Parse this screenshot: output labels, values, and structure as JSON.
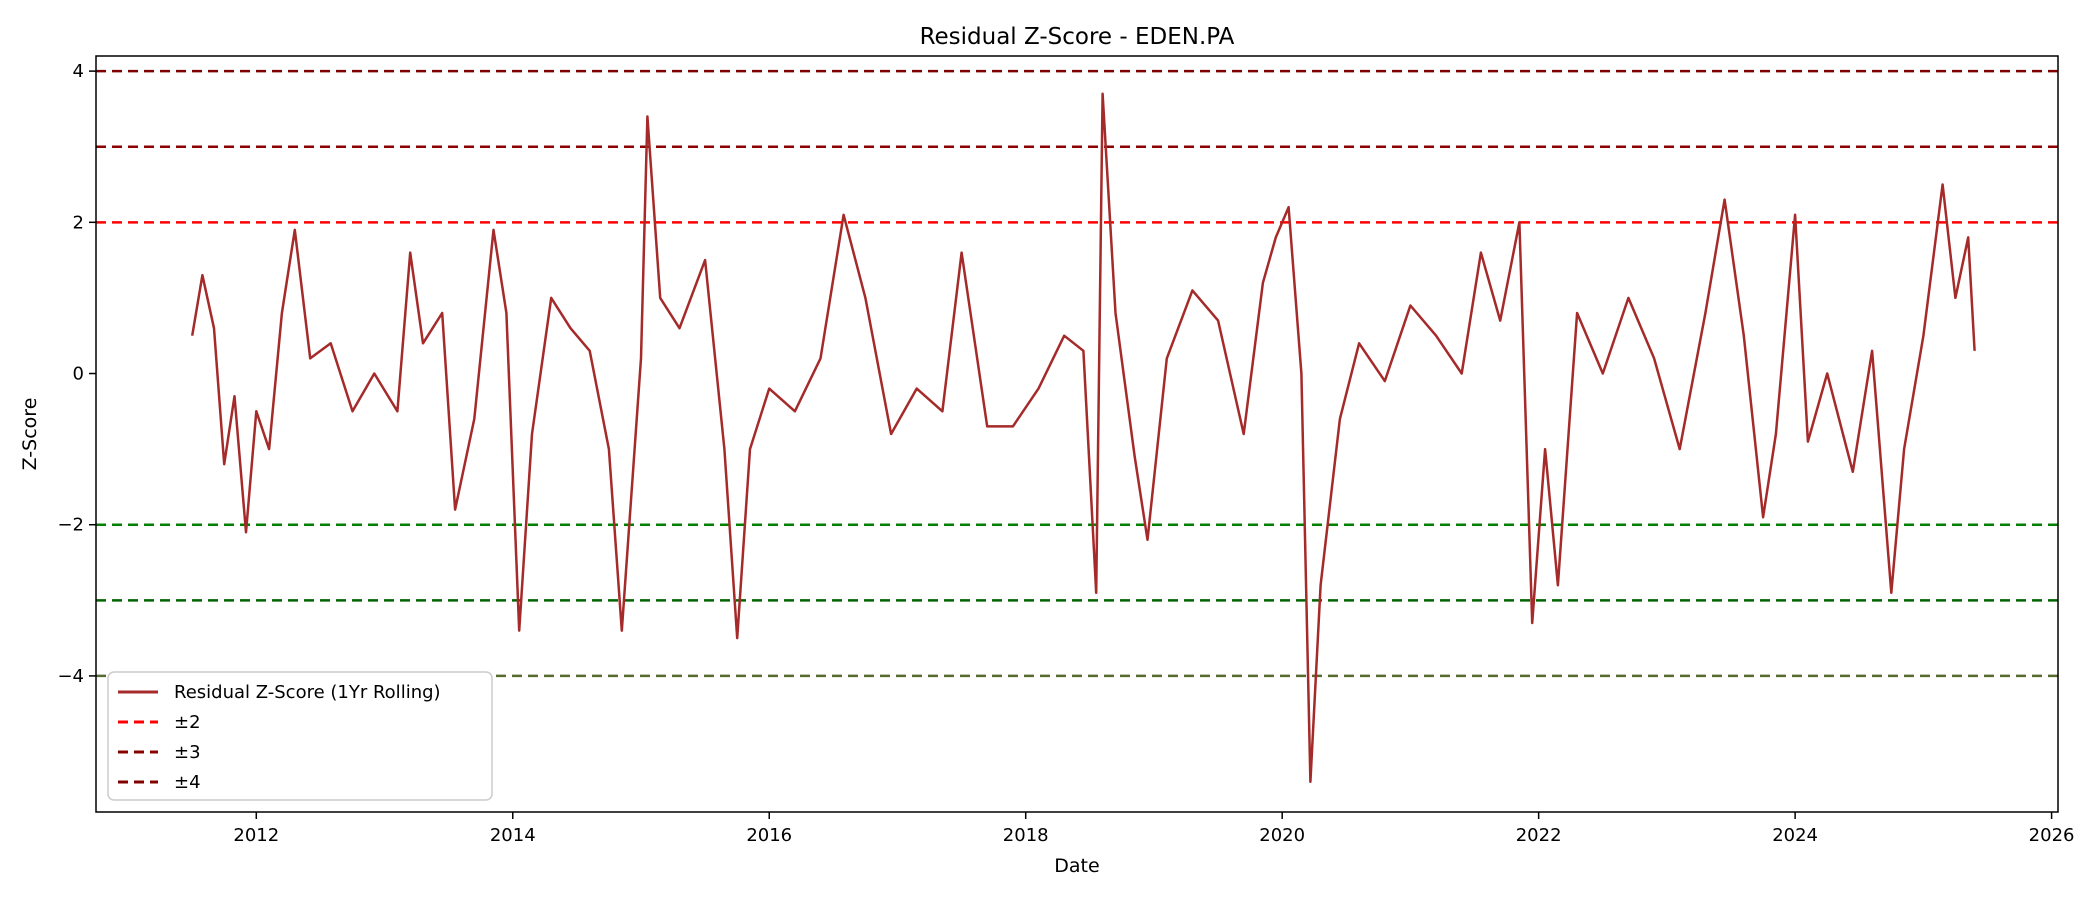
{
  "chart_data": {
    "type": "line",
    "title": "Residual Z-Score - EDEN.PA",
    "xlabel": "Date",
    "ylabel": "Z-Score",
    "xlim": [
      2010.75,
      2026.05
    ],
    "ylim": [
      -5.8,
      4.2
    ],
    "x_ticks": [
      2012,
      2014,
      2016,
      2018,
      2020,
      2022,
      2024,
      2026
    ],
    "x_tick_labels": [
      "2012",
      "2014",
      "2016",
      "2018",
      "2020",
      "2022",
      "2024",
      "2026"
    ],
    "y_ticks": [
      -4,
      -2,
      0,
      2,
      4
    ],
    "y_tick_labels": [
      "−4",
      "−2",
      "0",
      "2",
      "4"
    ],
    "grid": false,
    "legend_position": "lower-left",
    "series": [
      {
        "name": "Residual Z-Score (1Yr Rolling)",
        "color": "#A52A2A",
        "x": [
          2011.5,
          2011.58,
          2011.67,
          2011.75,
          2011.83,
          2011.92,
          2012.0,
          2012.1,
          2012.2,
          2012.3,
          2012.42,
          2012.58,
          2012.75,
          2012.92,
          2013.1,
          2013.2,
          2013.3,
          2013.45,
          2013.55,
          2013.7,
          2013.85,
          2013.95,
          2014.05,
          2014.15,
          2014.3,
          2014.45,
          2014.6,
          2014.75,
          2014.85,
          2015.0,
          2015.05,
          2015.15,
          2015.3,
          2015.5,
          2015.65,
          2015.75,
          2015.85,
          2016.0,
          2016.2,
          2016.4,
          2016.58,
          2016.75,
          2016.95,
          2017.15,
          2017.35,
          2017.5,
          2017.7,
          2017.9,
          2018.1,
          2018.3,
          2018.45,
          2018.55,
          2018.6,
          2018.7,
          2018.85,
          2018.95,
          2019.1,
          2019.3,
          2019.5,
          2019.7,
          2019.85,
          2019.95,
          2020.05,
          2020.15,
          2020.22,
          2020.3,
          2020.45,
          2020.6,
          2020.8,
          2021.0,
          2021.2,
          2021.4,
          2021.55,
          2021.7,
          2021.85,
          2021.95,
          2022.05,
          2022.15,
          2022.3,
          2022.5,
          2022.7,
          2022.9,
          2023.1,
          2023.3,
          2023.45,
          2023.6,
          2023.75,
          2023.85,
          2024.0,
          2024.1,
          2024.25,
          2024.45,
          2024.6,
          2024.75,
          2024.85,
          2025.0,
          2025.15,
          2025.25,
          2025.35,
          2025.4
        ],
        "y": [
          0.5,
          1.3,
          0.6,
          -1.2,
          -0.3,
          -2.1,
          -0.5,
          -1.0,
          0.8,
          1.9,
          0.2,
          0.4,
          -0.5,
          0.0,
          -0.5,
          1.6,
          0.4,
          0.8,
          -1.8,
          -0.6,
          1.9,
          0.8,
          -3.4,
          -0.8,
          1.0,
          0.6,
          0.3,
          -1.0,
          -3.4,
          0.2,
          3.4,
          1.0,
          0.6,
          1.5,
          -1.0,
          -3.5,
          -1.0,
          -0.2,
          -0.5,
          0.2,
          2.1,
          1.0,
          -0.8,
          -0.2,
          -0.5,
          1.6,
          -0.7,
          -0.7,
          -0.2,
          0.5,
          0.3,
          -2.9,
          3.7,
          0.8,
          -1.1,
          -2.2,
          0.2,
          1.1,
          0.7,
          -0.8,
          1.2,
          1.8,
          2.2,
          0.0,
          -5.4,
          -2.8,
          -0.6,
          0.4,
          -0.1,
          0.9,
          0.5,
          0.0,
          1.6,
          0.7,
          2.0,
          -3.3,
          -1.0,
          -2.8,
          0.8,
          0.0,
          1.0,
          0.2,
          -1.0,
          0.8,
          2.3,
          0.5,
          -1.9,
          -0.8,
          2.1,
          -0.9,
          0.0,
          -1.3,
          0.3,
          -2.9,
          -1.0,
          0.5,
          2.5,
          1.0,
          1.8,
          0.3
        ]
      },
      {
        "name": "±2",
        "color": "#FF0000",
        "dash": true
      },
      {
        "name": "±3",
        "color": "#8B0000",
        "dash": true
      },
      {
        "name": "±4",
        "color": "#800000",
        "dash": true
      }
    ],
    "threshold_lines": [
      {
        "y": 4,
        "color": "#800000"
      },
      {
        "y": 3,
        "color": "#8B0000"
      },
      {
        "y": 2,
        "color": "#FF0000"
      },
      {
        "y": -2,
        "color": "#008000"
      },
      {
        "y": -3,
        "color": "#006400"
      },
      {
        "y": -4,
        "color": "#556B2F"
      }
    ]
  }
}
